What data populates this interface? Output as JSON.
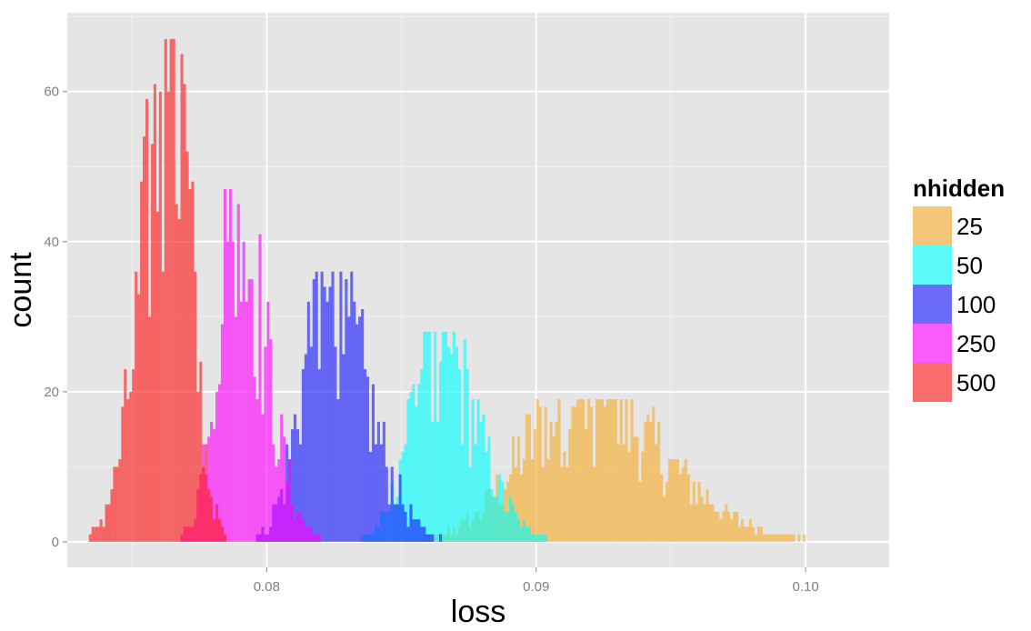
{
  "chart_data": {
    "type": "histogram",
    "xlabel": "loss",
    "ylabel": "count",
    "xlim": [
      0.0726,
      0.1031
    ],
    "ylim": [
      -3.4,
      70.5
    ],
    "x_ticks": [
      0.08,
      0.09,
      0.1
    ],
    "x_tick_labels": [
      "0.08",
      "0.09",
      "0.10"
    ],
    "y_ticks": [
      0,
      20,
      40,
      60
    ],
    "y_tick_labels": [
      "0",
      "20",
      "40",
      "60"
    ],
    "grid": true,
    "background": "#e5e5e5",
    "bin_width": 0.0001,
    "legend": {
      "title": "nhidden",
      "position": "right"
    },
    "series": [
      {
        "name": "25",
        "color": "#f6ae2d",
        "mode": "peak",
        "peak_center": 0.0915,
        "approx_range": [
          0.0855,
          0.1005
        ],
        "peak_count": 19,
        "max_count": 19
      },
      {
        "name": "50",
        "color": "#00ffff",
        "mode": "peak",
        "peak_center": 0.0862,
        "approx_range": [
          0.0835,
          0.0905
        ],
        "peak_count": 27,
        "max_count": 28
      },
      {
        "name": "100",
        "color": "#1a1aff",
        "mode": "peak",
        "peak_center": 0.0822,
        "approx_range": [
          0.0795,
          0.0865
        ],
        "peak_count": 33,
        "max_count": 36
      },
      {
        "name": "250",
        "color": "#ff00ff",
        "mode": "peak",
        "peak_center": 0.0788,
        "approx_range": [
          0.0768,
          0.082
        ],
        "peak_count": 44,
        "max_count": 47
      },
      {
        "name": "500",
        "color": "#ff1a1a",
        "mode": "peak",
        "peak_center": 0.0765,
        "approx_range": [
          0.0734,
          0.0785
        ],
        "peak_count": 62,
        "max_count": 67
      }
    ]
  }
}
